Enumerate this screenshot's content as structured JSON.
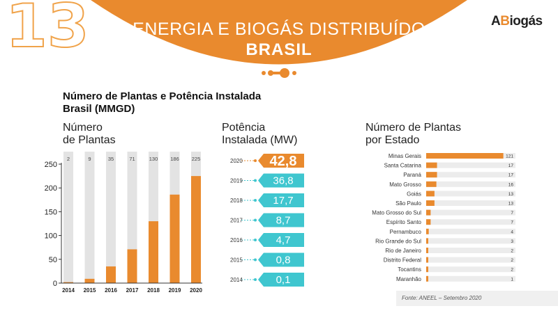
{
  "header": {
    "slide_number": "13",
    "title": "ENERGIA E BIOGÁS DISTRIBUÍDO",
    "subtitle": "BRASIL",
    "logo_prefix": "A",
    "logo_accent": "B",
    "logo_suffix": "iogás"
  },
  "section_title_line1": "Número de Plantas e Potência Instalada",
  "section_title_line2": "Brasil (MMGD)",
  "bar_title_line1": "Número",
  "bar_title_line2": "de Plantas",
  "pot_title_line1": "Potência",
  "pot_title_line2": "Instalada (MW)",
  "state_title_line1": "Número de Plantas",
  "state_title_line2": "por Estado",
  "source": "Fonte: ANEEL – Setembro 2020",
  "colors": {
    "orange": "#e98a2e",
    "teal": "#3fc6cf",
    "gray": "#e3e3e3"
  },
  "chart_data": [
    {
      "type": "bar",
      "categories": [
        "2014",
        "2015",
        "2016",
        "2017",
        "2018",
        "2019",
        "2020"
      ],
      "values": [
        2,
        9,
        35,
        71,
        130,
        186,
        225
      ],
      "ylim": [
        0,
        250
      ],
      "yticks": [
        0,
        50,
        100,
        150,
        200,
        250
      ],
      "background_max": 250
    },
    {
      "type": "table",
      "categories": [
        "2020",
        "2019",
        "2018",
        "2017",
        "2016",
        "2015",
        "2014"
      ],
      "values": [
        "42,8",
        "36,8",
        "17,7",
        "8,7",
        "4,7",
        "0,8",
        "0,1"
      ],
      "highlight": "2020"
    },
    {
      "type": "bar",
      "orientation": "horizontal",
      "categories": [
        "Minas Gerais",
        "Santa Catarina",
        "Paraná",
        "Mato Grosso",
        "Goiás",
        "São Paulo",
        "Mato Grosso do Sul",
        "Espírito Santo",
        "Pernambuco",
        "Rio Grande do Sul",
        "Rio de Janeiro",
        "Distrito Federal",
        "Tocantins",
        "Maranhão"
      ],
      "values": [
        121,
        17,
        17,
        16,
        13,
        13,
        7,
        7,
        4,
        3,
        2,
        2,
        2,
        1
      ],
      "xlim": [
        0,
        140
      ]
    }
  ]
}
